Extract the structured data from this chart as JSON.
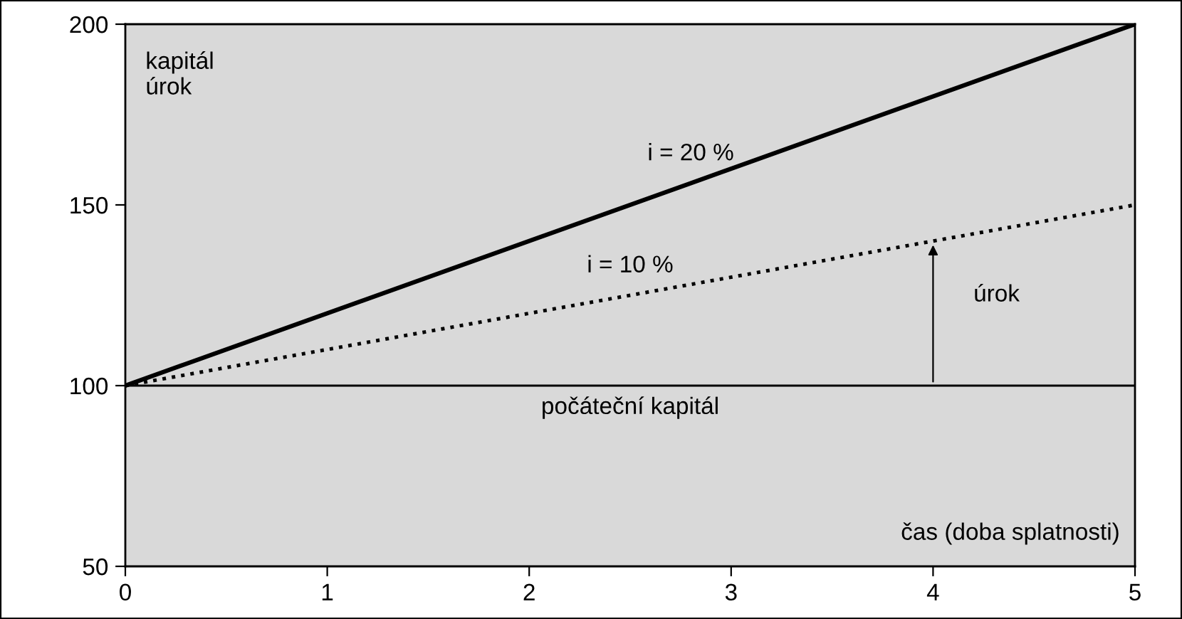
{
  "chart_data": {
    "type": "line",
    "ylabel": "kapitál\núrok",
    "xlabel": "čas (doba splatnosti)",
    "x": [
      0,
      5
    ],
    "series": [
      {
        "name": "i = 20 %",
        "color": "#000000",
        "values": [
          100,
          200
        ],
        "line_style": "solid"
      },
      {
        "name": "i = 10 %",
        "color": "#000000",
        "values": [
          100,
          150
        ],
        "line_style": "dotted"
      }
    ],
    "xlim": [
      0,
      5
    ],
    "xticks": [
      0,
      1,
      2,
      3,
      4,
      5
    ],
    "ylim": [
      50,
      200
    ],
    "yticks": [
      50,
      100,
      150,
      200
    ],
    "ref_lines": [
      {
        "axis": "y",
        "value": 100,
        "label": "počáteční kapitál",
        "color": "#000000"
      }
    ],
    "annotations": [
      {
        "text": "úrok",
        "x": 4,
        "y": 140
      }
    ],
    "grid": false,
    "legend": false,
    "marker": "none"
  }
}
